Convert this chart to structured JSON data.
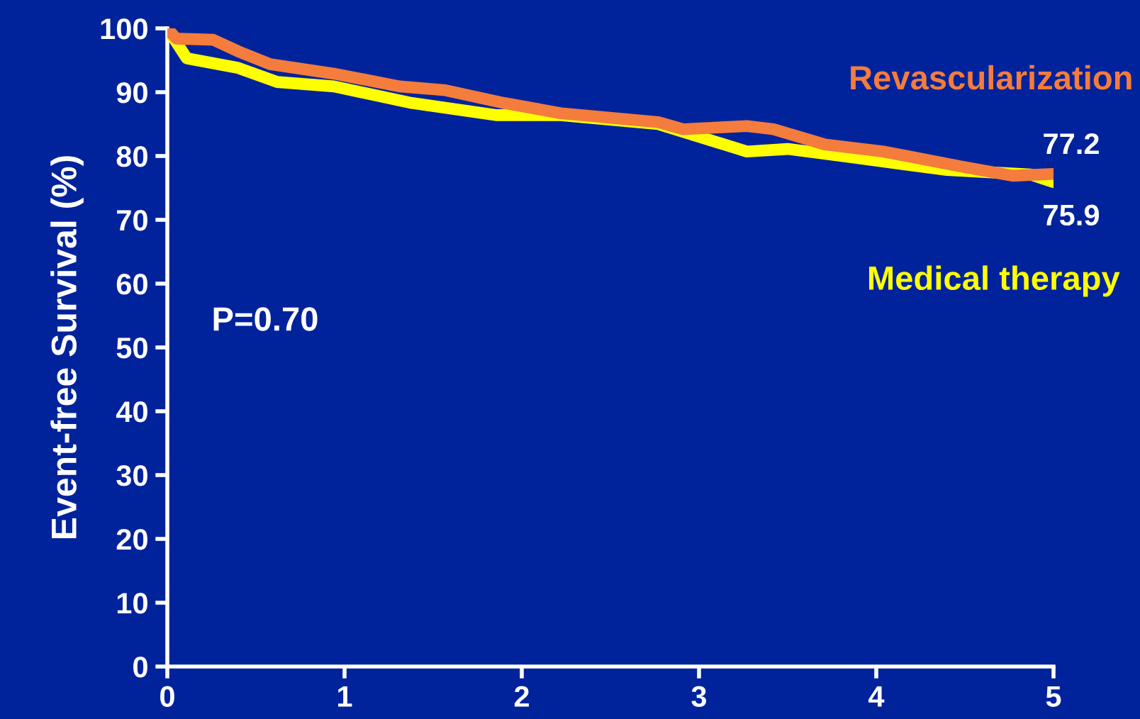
{
  "chart_data": {
    "type": "line",
    "ylabel": "Event-free Survival (%)",
    "xlim": [
      0,
      5
    ],
    "xticks": [
      0,
      1,
      2,
      3,
      4,
      5
    ],
    "ylim": [
      0,
      100
    ],
    "yticks": [
      0,
      10,
      20,
      30,
      40,
      50,
      60,
      70,
      80,
      90,
      100
    ],
    "grid": false,
    "legend": false,
    "marker": "none",
    "line_style": "solid",
    "series": [
      {
        "name": "Medical therapy",
        "color": "#ffff00",
        "x": [
          0,
          0.11,
          0.4,
          0.62,
          0.94,
          1.38,
          1.86,
          2.22,
          2.77,
          3.27,
          3.5,
          3.86,
          4.4,
          4.87,
          5.0
        ],
        "values": [
          100,
          95.3,
          93.8,
          91.6,
          90.9,
          88.3,
          86.4,
          86.4,
          85.0,
          80.7,
          81.1,
          79.8,
          77.8,
          77.1,
          75.9
        ]
      },
      {
        "name": "Revascularization",
        "color": "#f47c3c",
        "x": [
          0,
          0.05,
          0.26,
          0.4,
          0.58,
          0.94,
          1.31,
          1.57,
          1.9,
          2.22,
          2.77,
          2.91,
          3.27,
          3.42,
          3.71,
          4.04,
          4.47,
          4.77,
          5.0
        ],
        "values": [
          100,
          98.4,
          98.2,
          96.4,
          94.4,
          92.9,
          90.9,
          90.3,
          88.3,
          86.7,
          85.3,
          84.2,
          84.7,
          84.2,
          81.8,
          80.7,
          78.4,
          76.9,
          77.2
        ]
      }
    ],
    "annotations": [
      "P=0.70",
      {
        "text": "77.2",
        "x": 5,
        "y": 77.2
      },
      {
        "text": "75.9",
        "x": 5,
        "y": 75.9
      }
    ]
  }
}
